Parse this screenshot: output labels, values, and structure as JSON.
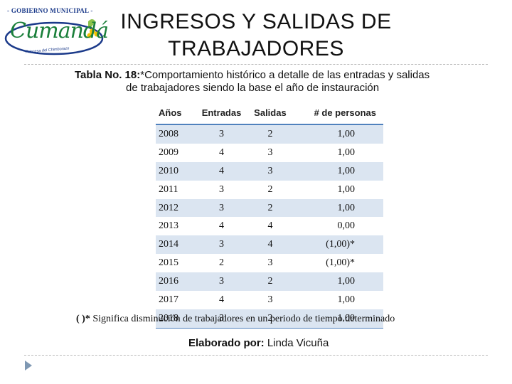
{
  "logo": {
    "top_text": "- GOBIERNO MUNICIPAL -",
    "word": "Cumandá",
    "tagline": "Princesa del Chimborazo"
  },
  "slide": {
    "title_line1": "INGRESOS Y SALIDAS DE",
    "title_line2": "TRABAJADORES"
  },
  "caption": {
    "label": "Tabla No. 18:",
    "text_line1": "*Comportamiento histórico a detalle de las entradas y salidas",
    "text_line2": "de trabajadores siendo la base el año de instauración"
  },
  "table": {
    "headers": [
      "Años",
      "Entradas",
      "Salidas",
      "# de personas"
    ],
    "rows": [
      [
        "2008",
        "3",
        "2",
        "1,00"
      ],
      [
        "2009",
        "4",
        "3",
        "1,00"
      ],
      [
        "2010",
        "4",
        "3",
        "1,00"
      ],
      [
        "2011",
        "3",
        "2",
        "1,00"
      ],
      [
        "2012",
        "3",
        "2",
        "1,00"
      ],
      [
        "2013",
        "4",
        "4",
        "0,00"
      ],
      [
        "2014",
        "3",
        "4",
        "(1,00)*"
      ],
      [
        "2015",
        "2",
        "3",
        "(1,00)*"
      ],
      [
        "2016",
        "3",
        "2",
        "1,00"
      ],
      [
        "2017",
        "4",
        "3",
        "1,00"
      ],
      [
        "2018",
        "3",
        "2",
        "1,00"
      ]
    ]
  },
  "footnote": {
    "mark": "( )*",
    "text": "Significa disminución de trabajadores en un periodo de tiempo determinado"
  },
  "credit": {
    "label": "Elaborado por:",
    "name": "Linda Vicuña"
  },
  "colors": {
    "table_header_rule": "#4f81bd",
    "table_band": "#dbe5f1",
    "logo_green": "#1a7f3a",
    "logo_blue": "#1b3a8a"
  },
  "icons": [
    "municipal-logo",
    "arrow-bullet-icon"
  ]
}
